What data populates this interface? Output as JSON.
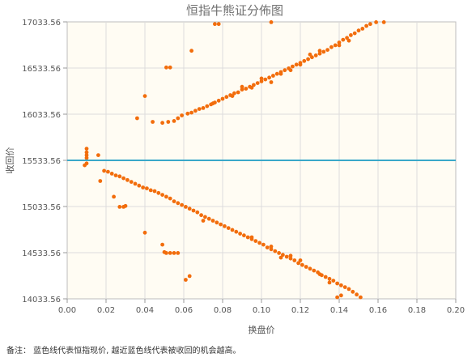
{
  "chart_data": {
    "type": "scatter",
    "title": "恒指牛熊证分佈图",
    "xlabel": "换盘价",
    "ylabel": "收回价",
    "xlim": [
      0,
      0.2
    ],
    "ylim": [
      14033.56,
      17033.56
    ],
    "x_ticks": [
      "0.00",
      "0.02",
      "0.04",
      "0.06",
      "0.08",
      "0.10",
      "0.12",
      "0.14",
      "0.16",
      "0.18",
      "0.20"
    ],
    "y_ticks": [
      "14033.56",
      "14533.56",
      "15033.56",
      "15533.56",
      "16033.56",
      "16533.56",
      "17033.56"
    ],
    "grid": true,
    "reference_line": {
      "y": 15533.56,
      "color": "#3aa8c9"
    },
    "point_color": "#f26d0c",
    "plot_background": "#fffcf3",
    "series": [
      {
        "points": [
          [
            0.01,
            15660
          ],
          [
            0.01,
            15620
          ],
          [
            0.01,
            15590
          ],
          [
            0.01,
            15560
          ],
          [
            0.01,
            15500
          ],
          [
            0.009,
            15480
          ],
          [
            0.016,
            15590
          ],
          [
            0.049,
            15940
          ],
          [
            0.052,
            15950
          ],
          [
            0.055,
            15960
          ],
          [
            0.057,
            15990
          ],
          [
            0.059,
            16020
          ],
          [
            0.062,
            16040
          ],
          [
            0.064,
            16050
          ],
          [
            0.066,
            16070
          ],
          [
            0.068,
            16090
          ],
          [
            0.07,
            16100
          ],
          [
            0.072,
            16120
          ],
          [
            0.074,
            16140
          ],
          [
            0.076,
            16160
          ],
          [
            0.078,
            16180
          ],
          [
            0.08,
            16200
          ],
          [
            0.082,
            16220
          ],
          [
            0.084,
            16240
          ],
          [
            0.086,
            16260
          ],
          [
            0.088,
            16270
          ],
          [
            0.09,
            16300
          ],
          [
            0.092,
            16310
          ],
          [
            0.094,
            16330
          ],
          [
            0.096,
            16350
          ],
          [
            0.098,
            16370
          ],
          [
            0.1,
            16390
          ],
          [
            0.102,
            16410
          ],
          [
            0.104,
            16430
          ],
          [
            0.106,
            16450
          ],
          [
            0.108,
            16470
          ],
          [
            0.11,
            16490
          ],
          [
            0.112,
            16510
          ],
          [
            0.114,
            16530
          ],
          [
            0.116,
            16550
          ],
          [
            0.118,
            16570
          ],
          [
            0.12,
            16590
          ],
          [
            0.122,
            16610
          ],
          [
            0.124,
            16630
          ],
          [
            0.126,
            16650
          ],
          [
            0.128,
            16670
          ],
          [
            0.13,
            16690
          ],
          [
            0.132,
            16710
          ],
          [
            0.134,
            16730
          ],
          [
            0.136,
            16760
          ],
          [
            0.138,
            16780
          ],
          [
            0.14,
            16810
          ],
          [
            0.142,
            16840
          ],
          [
            0.144,
            16860
          ],
          [
            0.146,
            16890
          ],
          [
            0.148,
            16910
          ],
          [
            0.15,
            16940
          ],
          [
            0.152,
            16960
          ],
          [
            0.154,
            16990
          ],
          [
            0.156,
            17010
          ],
          [
            0.159,
            17030
          ],
          [
            0.163,
            17030
          ],
          [
            0.09,
            16330
          ],
          [
            0.095,
            16320
          ],
          [
            0.1,
            16420
          ],
          [
            0.11,
            16470
          ],
          [
            0.12,
            16570
          ],
          [
            0.125,
            16680
          ],
          [
            0.13,
            16720
          ],
          [
            0.105,
            16380
          ],
          [
            0.115,
            16510
          ],
          [
            0.085,
            16230
          ],
          [
            0.075,
            16150
          ],
          [
            0.14,
            16780
          ],
          [
            0.145,
            16830
          ],
          [
            0.076,
            17010
          ],
          [
            0.078,
            17010
          ],
          [
            0.105,
            17030
          ],
          [
            0.064,
            16720
          ],
          [
            0.051,
            16540
          ],
          [
            0.053,
            16540
          ],
          [
            0.04,
            16230
          ],
          [
            0.036,
            15990
          ],
          [
            0.044,
            15950
          ],
          [
            0.019,
            15420
          ],
          [
            0.021,
            15410
          ],
          [
            0.023,
            15390
          ],
          [
            0.025,
            15370
          ],
          [
            0.027,
            15360
          ],
          [
            0.029,
            15340
          ],
          [
            0.031,
            15320
          ],
          [
            0.033,
            15300
          ],
          [
            0.035,
            15280
          ],
          [
            0.037,
            15260
          ],
          [
            0.039,
            15240
          ],
          [
            0.041,
            15230
          ],
          [
            0.043,
            15210
          ],
          [
            0.045,
            15200
          ],
          [
            0.047,
            15180
          ],
          [
            0.049,
            15160
          ],
          [
            0.051,
            15140
          ],
          [
            0.053,
            15120
          ],
          [
            0.055,
            15090
          ],
          [
            0.057,
            15070
          ],
          [
            0.059,
            15050
          ],
          [
            0.061,
            15030
          ],
          [
            0.063,
            15010
          ],
          [
            0.065,
            14990
          ],
          [
            0.067,
            14970
          ],
          [
            0.069,
            14940
          ],
          [
            0.071,
            14920
          ],
          [
            0.073,
            14900
          ],
          [
            0.075,
            14880
          ],
          [
            0.077,
            14860
          ],
          [
            0.079,
            14840
          ],
          [
            0.081,
            14820
          ],
          [
            0.083,
            14800
          ],
          [
            0.085,
            14780
          ],
          [
            0.087,
            14760
          ],
          [
            0.089,
            14740
          ],
          [
            0.091,
            14720
          ],
          [
            0.093,
            14700
          ],
          [
            0.095,
            14680
          ],
          [
            0.097,
            14660
          ],
          [
            0.099,
            14640
          ],
          [
            0.101,
            14620
          ],
          [
            0.103,
            14590
          ],
          [
            0.105,
            14570
          ],
          [
            0.107,
            14550
          ],
          [
            0.109,
            14530
          ],
          [
            0.111,
            14510
          ],
          [
            0.113,
            14490
          ],
          [
            0.115,
            14470
          ],
          [
            0.117,
            14450
          ],
          [
            0.119,
            14420
          ],
          [
            0.121,
            14400
          ],
          [
            0.123,
            14380
          ],
          [
            0.125,
            14360
          ],
          [
            0.127,
            14340
          ],
          [
            0.129,
            14320
          ],
          [
            0.131,
            14290
          ],
          [
            0.133,
            14270
          ],
          [
            0.135,
            14250
          ],
          [
            0.137,
            14230
          ],
          [
            0.139,
            14200
          ],
          [
            0.141,
            14180
          ],
          [
            0.143,
            14160
          ],
          [
            0.145,
            14140
          ],
          [
            0.147,
            14110
          ],
          [
            0.149,
            14080
          ],
          [
            0.151,
            14050
          ],
          [
            0.139,
            14050
          ],
          [
            0.141,
            14070
          ],
          [
            0.017,
            15310
          ],
          [
            0.024,
            15140
          ],
          [
            0.027,
            15030
          ],
          [
            0.029,
            15030
          ],
          [
            0.03,
            15040
          ],
          [
            0.04,
            14750
          ],
          [
            0.049,
            14620
          ],
          [
            0.05,
            14540
          ],
          [
            0.051,
            14530
          ],
          [
            0.053,
            14530
          ],
          [
            0.055,
            14530
          ],
          [
            0.057,
            14530
          ],
          [
            0.063,
            14280
          ],
          [
            0.061,
            14240
          ],
          [
            0.07,
            14880
          ],
          [
            0.095,
            14700
          ],
          [
            0.11,
            14480
          ],
          [
            0.12,
            14450
          ],
          [
            0.13,
            14300
          ],
          [
            0.135,
            14210
          ],
          [
            0.115,
            14500
          ],
          [
            0.105,
            14600
          ]
        ]
      }
    ]
  },
  "footnote": "备注： 蓝色线代表恒指现价, 越近蓝色线代表被收回的机会越高。"
}
